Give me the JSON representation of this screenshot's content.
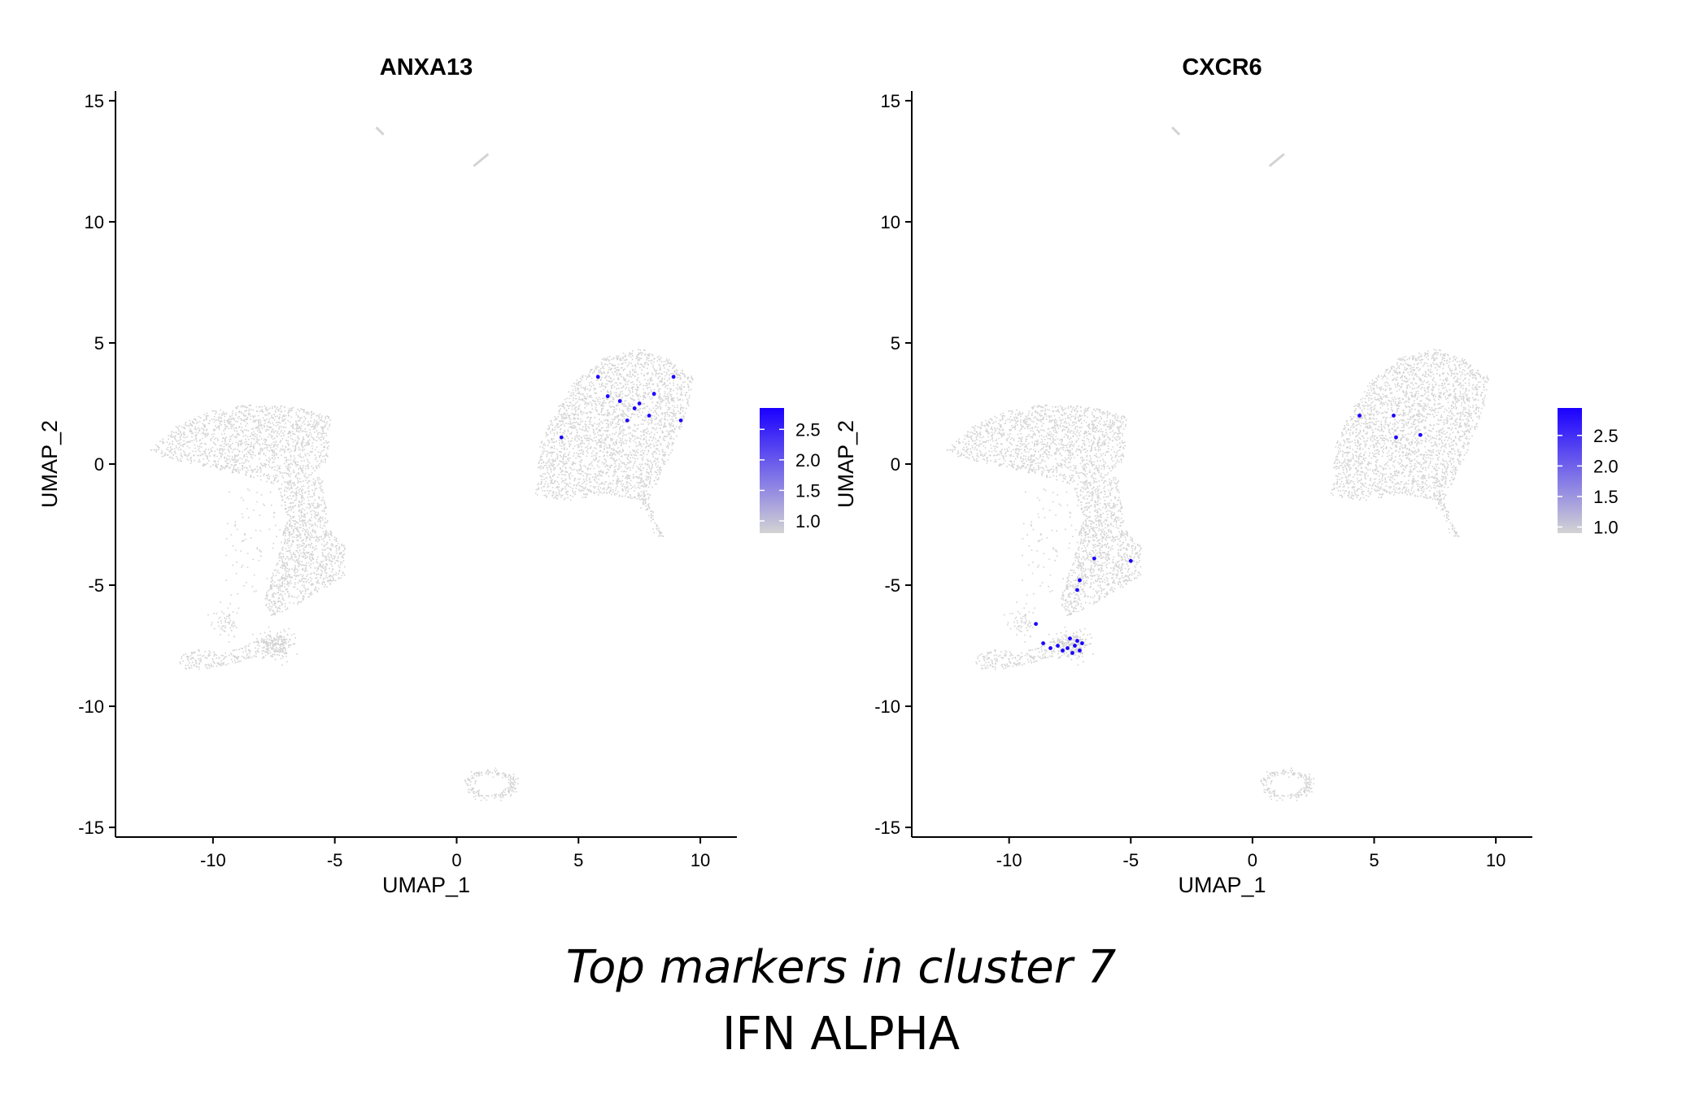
{
  "caption": {
    "title": "Top markers in cluster 7",
    "subtitle": "IFN ALPHA"
  },
  "colors": {
    "low": "#d3d3d3",
    "high": "#1a00ff",
    "axis": "#000000"
  },
  "chart_data": [
    {
      "type": "scatter",
      "title": "ANXA13",
      "xlabel": "UMAP_1",
      "ylabel": "UMAP_2",
      "xlim": [
        -14,
        11.5
      ],
      "ylim": [
        -15.4,
        15.4
      ],
      "xticks": [
        -10,
        -5,
        0,
        5,
        10
      ],
      "yticks": [
        -15,
        -10,
        -5,
        0,
        5,
        10,
        15
      ],
      "xtick_labels": [
        "-10",
        "-5",
        "0",
        "5",
        "10"
      ],
      "ytick_labels": [
        "-15",
        "-10",
        "-5",
        "0",
        "5",
        "10",
        "15"
      ],
      "grid": false,
      "legend": {
        "position": "right",
        "type": "colorbar",
        "range": [
          0.8,
          2.85
        ],
        "ticks": [
          1.0,
          1.5,
          2.0,
          2.5
        ],
        "tick_labels": [
          "1.0",
          "1.5",
          "2.0",
          "2.5"
        ]
      },
      "series": [
        {
          "color": "#1a00ff",
          "values": [
            [
              5.8,
              3.6
            ],
            [
              6.2,
              2.8
            ],
            [
              6.7,
              2.6
            ],
            [
              7.0,
              1.8
            ],
            [
              7.5,
              2.5
            ],
            [
              7.9,
              2.0
            ],
            [
              8.1,
              2.9
            ],
            [
              8.9,
              3.6
            ],
            [
              4.3,
              1.1
            ],
            [
              7.3,
              2.3
            ],
            [
              9.2,
              1.8
            ]
          ]
        }
      ]
    },
    {
      "type": "scatter",
      "title": "CXCR6",
      "xlabel": "UMAP_1",
      "ylabel": "UMAP_2",
      "xlim": [
        -14,
        11.5
      ],
      "ylim": [
        -15.4,
        15.4
      ],
      "xticks": [
        -10,
        -5,
        0,
        5,
        10
      ],
      "yticks": [
        -15,
        -10,
        -5,
        0,
        5,
        10,
        15
      ],
      "xtick_labels": [
        "-10",
        "-5",
        "0",
        "5",
        "10"
      ],
      "ytick_labels": [
        "-15",
        "-10",
        "-5",
        "0",
        "5",
        "10",
        "15"
      ],
      "grid": false,
      "legend": {
        "position": "right",
        "type": "colorbar",
        "range": [
          0.9,
          2.95
        ],
        "ticks": [
          1.0,
          1.5,
          2.0,
          2.5
        ],
        "tick_labels": [
          "1.0",
          "1.5",
          "2.0",
          "2.5"
        ]
      },
      "series": [
        {
          "color": "#1a00ff",
          "values": [
            [
              -8.6,
              -7.4
            ],
            [
              -8.3,
              -7.6
            ],
            [
              -8.0,
              -7.5
            ],
            [
              -7.8,
              -7.7
            ],
            [
              -7.6,
              -7.6
            ],
            [
              -7.5,
              -7.2
            ],
            [
              -7.4,
              -7.8
            ],
            [
              -7.3,
              -7.5
            ],
            [
              -7.2,
              -7.3
            ],
            [
              -7.1,
              -7.7
            ],
            [
              -7.0,
              -7.4
            ],
            [
              -8.9,
              -6.6
            ],
            [
              -7.2,
              -5.2
            ],
            [
              -7.1,
              -4.8
            ],
            [
              -6.5,
              -3.9
            ],
            [
              4.4,
              2.0
            ],
            [
              5.8,
              2.0
            ],
            [
              5.9,
              1.1
            ],
            [
              6.9,
              1.2
            ],
            [
              -5.0,
              -4.0
            ]
          ]
        }
      ]
    }
  ]
}
